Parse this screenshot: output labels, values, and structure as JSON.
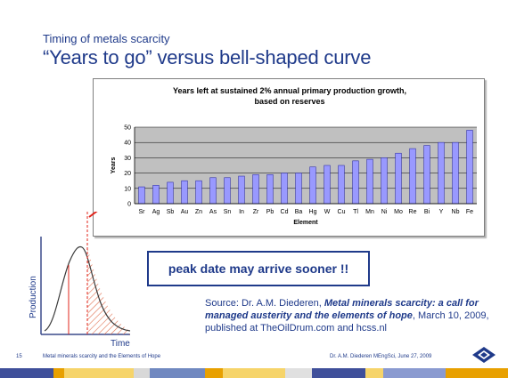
{
  "slide": {
    "subtitle": "Timing of metals scarcity",
    "title": "“Years to go” versus bell-shaped curve",
    "callout": "peak date may arrive sooner !!",
    "source_prefix": "Source: Dr. A.M. Diederen, ",
    "source_title": "Metal minerals scarcity: a call for managed austerity and the elements of hope",
    "source_suffix": ", March 10, 2009, published at TheOilDrum.com and hcss.nl",
    "footer_page": "15",
    "footer_left": "Metal minerals scarcity and the Elements of Hope",
    "footer_right": "Dr. A.M. Diederen MEngSci, June 27, 2009",
    "bell_ylabel": "Production",
    "bell_xlabel": "Time"
  },
  "colors": {
    "title_blue": "#1f3a8a",
    "bar_fill": "#9999ff",
    "bar_stroke": "#3333aa",
    "plot_bg": "#c0c0c0",
    "arrow_red": "#e0241b",
    "hatch": "#e07050"
  },
  "chart_data": {
    "type": "bar",
    "title": "Years left at sustained 2% annual primary production growth,",
    "subtitle": "based on reserves",
    "xlabel": "Element",
    "ylabel": "Years",
    "ylim": [
      0,
      50
    ],
    "yticks": [
      0,
      10,
      20,
      30,
      40,
      50
    ],
    "grid": true,
    "categories": [
      "Sr",
      "Ag",
      "Sb",
      "Au",
      "Zn",
      "As",
      "Sn",
      "In",
      "Zr",
      "Pb",
      "Cd",
      "Ba",
      "Hg",
      "W",
      "Cu",
      "Tl",
      "Mn",
      "Ni",
      "Mo",
      "Re",
      "Bi",
      "Y",
      "Nb",
      "Fe"
    ],
    "values": [
      11,
      12,
      14,
      15,
      15,
      17,
      17,
      18,
      19,
      19,
      20,
      20,
      24,
      25,
      25,
      28,
      29,
      30,
      33,
      36,
      38,
      40,
      40,
      48
    ]
  }
}
